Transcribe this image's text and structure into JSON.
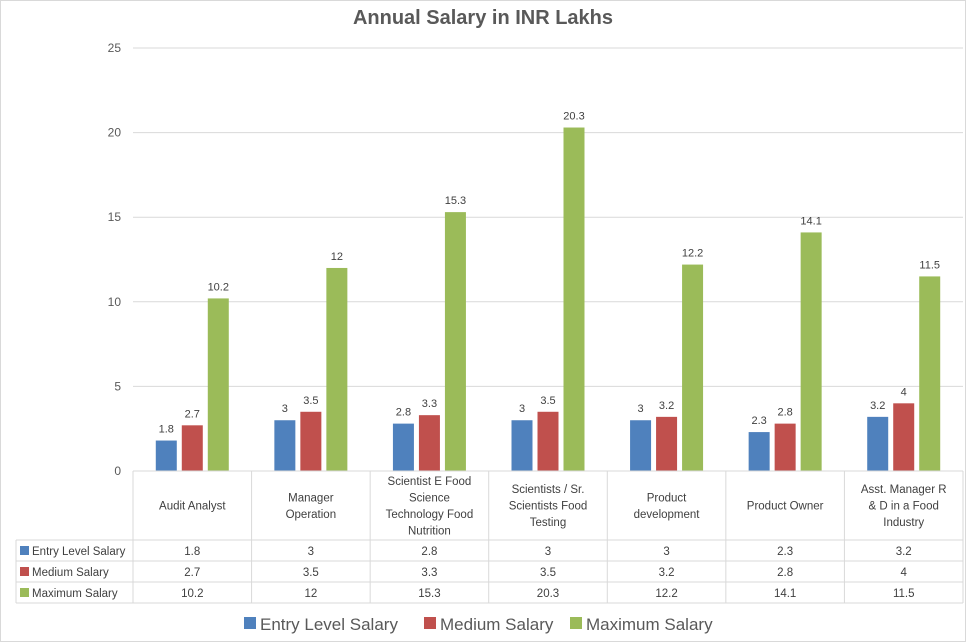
{
  "chart_data": {
    "type": "bar",
    "title": "Annual Salary in INR Lakhs",
    "xlabel": "",
    "ylabel": "",
    "ylim": [
      0,
      25
    ],
    "yticks": [
      0,
      5,
      10,
      15,
      20,
      25
    ],
    "grid": true,
    "legend_position": "bottom",
    "data_table": true,
    "categories": [
      "Audit Analyst",
      "Manager Operation",
      "Scientist E Food Science Technology Food Nutrition",
      "Scientists / Sr. Scientists  Food Testing",
      "Product development",
      "Product Owner",
      "Asst. Manager R & D in a Food Industry"
    ],
    "category_lines": [
      [
        "Audit Analyst"
      ],
      [
        "Manager",
        "Operation"
      ],
      [
        "Scientist E Food",
        "Science",
        "Technology Food",
        "Nutrition"
      ],
      [
        "Scientists / Sr.",
        "Scientists  Food",
        "Testing"
      ],
      [
        "Product",
        "development"
      ],
      [
        "Product Owner"
      ],
      [
        "Asst. Manager R",
        "& D in a Food",
        "Industry"
      ]
    ],
    "series": [
      {
        "name": "Entry Level Salary",
        "color": "#4f81bd",
        "values": [
          1.8,
          3,
          2.8,
          3,
          3,
          2.3,
          3.2
        ]
      },
      {
        "name": "Medium Salary",
        "color": "#c0504d",
        "values": [
          2.7,
          3.5,
          3.3,
          3.5,
          3.2,
          2.8,
          4
        ]
      },
      {
        "name": "Maximum Salary",
        "color": "#9bbb59",
        "values": [
          10.2,
          12,
          15.3,
          20.3,
          12.2,
          14.1,
          11.5
        ]
      }
    ]
  }
}
